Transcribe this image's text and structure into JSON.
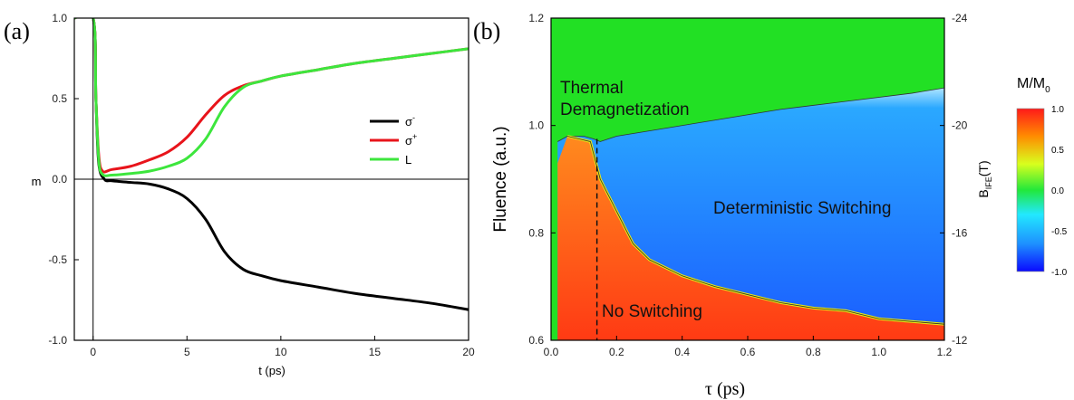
{
  "chart_data": [
    {
      "type": "line",
      "panel_label": "(a)",
      "xlabel": "t (ps)",
      "ylabel": "m",
      "xlim": [
        -1,
        20
      ],
      "ylim": [
        -1.0,
        1.0
      ],
      "x_ticks": [
        "0",
        "5",
        "10",
        "15",
        "20"
      ],
      "y_ticks": [
        "1.0",
        "0.5",
        "0.0",
        "-0.5",
        "-1.0"
      ],
      "legend": {
        "placement": "upper-right",
        "entries": [
          {
            "label": "σ",
            "sup": "-",
            "color": "#000000"
          },
          {
            "label": "σ",
            "sup": "+",
            "color": "#e8141b"
          },
          {
            "label": "L",
            "sup": "",
            "color": "#3de63d"
          }
        ]
      },
      "series": [
        {
          "color": "#000000",
          "x": [
            -1,
            0,
            0.15,
            0.3,
            0.6,
            1,
            2,
            3,
            4,
            5,
            6,
            7,
            8,
            9,
            10,
            12,
            14,
            16,
            18,
            20
          ],
          "y": [
            1.0,
            1.0,
            0.5,
            0.1,
            0.0,
            -0.01,
            -0.02,
            -0.03,
            -0.06,
            -0.12,
            -0.25,
            -0.45,
            -0.56,
            -0.6,
            -0.63,
            -0.67,
            -0.71,
            -0.74,
            -0.77,
            -0.81
          ]
        },
        {
          "color": "#e8141b",
          "x": [
            -1,
            0,
            0.15,
            0.3,
            0.5,
            1,
            2,
            3,
            4,
            5,
            6,
            7,
            8,
            9,
            10,
            12,
            14,
            16,
            18,
            20
          ],
          "y": [
            1.0,
            1.0,
            0.5,
            0.15,
            0.05,
            0.06,
            0.08,
            0.12,
            0.17,
            0.26,
            0.4,
            0.52,
            0.58,
            0.61,
            0.64,
            0.68,
            0.72,
            0.75,
            0.78,
            0.81
          ]
        },
        {
          "color": "#3de63d",
          "x": [
            -1,
            0,
            0.15,
            0.3,
            0.5,
            1,
            2,
            3,
            4,
            5,
            6,
            7,
            8,
            9,
            10,
            12,
            14,
            16,
            18,
            20
          ],
          "y": [
            1.0,
            1.0,
            0.5,
            0.12,
            0.03,
            0.025,
            0.035,
            0.05,
            0.08,
            0.13,
            0.25,
            0.45,
            0.57,
            0.61,
            0.64,
            0.68,
            0.72,
            0.75,
            0.78,
            0.81
          ]
        }
      ]
    },
    {
      "type": "heatmap",
      "panel_label": "(b)",
      "xlabel": "τ (ps)",
      "ylabel": "Fluence (a.u.)",
      "y2label_main": "B",
      "y2label_sub": "IFE",
      "y2label_tail": "(T)",
      "xlim": [
        0,
        1.2
      ],
      "ylim": [
        0.6,
        1.2
      ],
      "x_ticks": [
        "0.0",
        "0.2",
        "0.4",
        "0.6",
        "0.8",
        "1.0",
        "1.2"
      ],
      "y_ticks": [
        "1.2",
        "1.0",
        "0.8",
        "0.6"
      ],
      "y2_ticks": [
        "-24",
        "-20",
        "-16",
        "-12"
      ],
      "regions": {
        "thermal_line1": "Thermal",
        "thermal_line2": "Demagnetization",
        "deterministic": "Deterministic Switching",
        "none": "No Switching"
      },
      "thermal_boundary": {
        "tau": [
          0.02,
          0.05,
          0.1,
          0.13,
          0.15,
          0.2,
          0.3,
          0.5,
          0.7,
          0.9,
          1.1,
          1.2
        ],
        "fluence": [
          0.97,
          0.98,
          0.98,
          0.975,
          0.97,
          0.98,
          0.99,
          1.01,
          1.03,
          1.045,
          1.06,
          1.07
        ]
      },
      "switching_boundary": {
        "tau": [
          0.05,
          0.12,
          0.15,
          0.2,
          0.25,
          0.3,
          0.4,
          0.5,
          0.6,
          0.7,
          0.8,
          0.9,
          1.0,
          1.1,
          1.2
        ],
        "fluence": [
          0.98,
          0.97,
          0.9,
          0.84,
          0.78,
          0.75,
          0.72,
          0.7,
          0.685,
          0.67,
          0.66,
          0.655,
          0.64,
          0.635,
          0.63
        ]
      },
      "dashed_line_tau": 0.14,
      "colorbar": {
        "title_main": "M/M",
        "title_sub": "0",
        "range": [
          -1.0,
          1.0
        ],
        "ticks": [
          "1.0",
          "0.5",
          "0.0",
          "-0.5",
          "-1.0"
        ],
        "colormap": [
          "#0a0aff",
          "#1e90ff",
          "#22e8ff",
          "#22e83a",
          "#d8ff1e",
          "#ff8c00",
          "#ff1a1a"
        ]
      }
    }
  ]
}
